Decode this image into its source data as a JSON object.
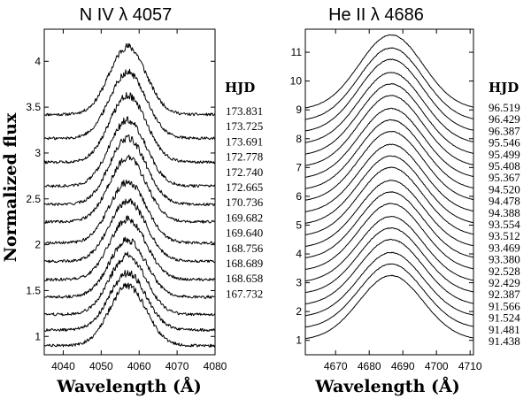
{
  "chart_data": [
    {
      "type": "line",
      "title": "N IV λ 4057",
      "xlabel": "Wavelength (Å)",
      "ylabel": "Normalized flux",
      "xlim": [
        4035,
        4080
      ],
      "ylim": [
        0.8,
        4.35
      ],
      "xticks": [
        4040,
        4050,
        4060,
        4070,
        4080
      ],
      "yticks": [
        1,
        1.5,
        2,
        2.5,
        3,
        3.5,
        4
      ],
      "xtick_labels": [
        "4040",
        "4050",
        "4060",
        "4070",
        "4080"
      ],
      "ytick_labels": [
        "1",
        "1.5",
        "2",
        "2.5",
        "3",
        "3.5",
        "4"
      ],
      "center": 4057,
      "width": 4.8,
      "noise": 0.025,
      "legend_title": "HJD",
      "series": [
        {
          "name": "173.831",
          "baseline": 3.42,
          "peak": 0.74
        },
        {
          "name": "173.725",
          "baseline": 3.16,
          "peak": 0.72
        },
        {
          "name": "173.691",
          "baseline": 2.9,
          "peak": 0.73
        },
        {
          "name": "172.778",
          "baseline": 2.64,
          "peak": 0.72
        },
        {
          "name": "172.740",
          "baseline": 2.44,
          "peak": 0.72
        },
        {
          "name": "172.665",
          "baseline": 2.25,
          "peak": 0.7
        },
        {
          "name": "170.736",
          "baseline": 2.02,
          "peak": 0.66
        },
        {
          "name": "169.682",
          "baseline": 1.82,
          "peak": 0.66
        },
        {
          "name": "169.640",
          "baseline": 1.62,
          "peak": 0.66
        },
        {
          "name": "168.756",
          "baseline": 1.43,
          "peak": 0.62
        },
        {
          "name": "168.689",
          "baseline": 1.24,
          "peak": 0.64
        },
        {
          "name": "168.658",
          "baseline": 1.07,
          "peak": 0.62
        },
        {
          "name": "167.732",
          "baseline": 0.9,
          "peak": 0.65
        }
      ]
    },
    {
      "type": "line",
      "title": "He II λ 4686",
      "xlabel": "Wavelength (Å)",
      "ylabel": "",
      "xlim": [
        4661,
        4711
      ],
      "ylim": [
        0.5,
        11.8
      ],
      "xticks": [
        4670,
        4680,
        4690,
        4700,
        4710
      ],
      "yticks": [
        1,
        2,
        3,
        4,
        5,
        6,
        7,
        8,
        9,
        10,
        11
      ],
      "xtick_labels": [
        "4670",
        "4680",
        "4690",
        "4700",
        "4710"
      ],
      "ytick_labels": [
        "1",
        "2",
        "3",
        "4",
        "5",
        "6",
        "7",
        "8",
        "9",
        "10",
        "11"
      ],
      "center": 4686.5,
      "width": 9.5,
      "noise": 0.008,
      "legend_title": "HJD",
      "series": [
        {
          "name": "96.519",
          "baseline": 9.0,
          "peak": 2.6
        },
        {
          "name": "96.429",
          "baseline": 8.6,
          "peak": 2.55
        },
        {
          "name": "96.387",
          "baseline": 8.2,
          "peak": 2.55
        },
        {
          "name": "95.546",
          "baseline": 7.8,
          "peak": 2.5
        },
        {
          "name": "95.499",
          "baseline": 7.4,
          "peak": 2.5
        },
        {
          "name": "95.408",
          "baseline": 7.0,
          "peak": 2.5
        },
        {
          "name": "95.367",
          "baseline": 6.6,
          "peak": 2.45
        },
        {
          "name": "94.520",
          "baseline": 6.2,
          "peak": 2.45
        },
        {
          "name": "94.478",
          "baseline": 5.8,
          "peak": 2.45
        },
        {
          "name": "94.388",
          "baseline": 5.4,
          "peak": 2.4
        },
        {
          "name": "93.554",
          "baseline": 5.0,
          "peak": 2.4
        },
        {
          "name": "93.512",
          "baseline": 4.6,
          "peak": 2.4
        },
        {
          "name": "93.469",
          "baseline": 4.2,
          "peak": 2.35
        },
        {
          "name": "93.380",
          "baseline": 3.8,
          "peak": 2.35
        },
        {
          "name": "92.528",
          "baseline": 3.4,
          "peak": 2.35
        },
        {
          "name": "92.429",
          "baseline": 3.0,
          "peak": 2.3
        },
        {
          "name": "92.387",
          "baseline": 2.6,
          "peak": 2.3
        },
        {
          "name": "91.566",
          "baseline": 2.2,
          "peak": 2.3
        },
        {
          "name": "91.524",
          "baseline": 1.8,
          "peak": 2.25
        },
        {
          "name": "91.481",
          "baseline": 1.4,
          "peak": 2.25
        },
        {
          "name": "91.438",
          "baseline": 1.0,
          "peak": 2.25
        }
      ]
    }
  ]
}
